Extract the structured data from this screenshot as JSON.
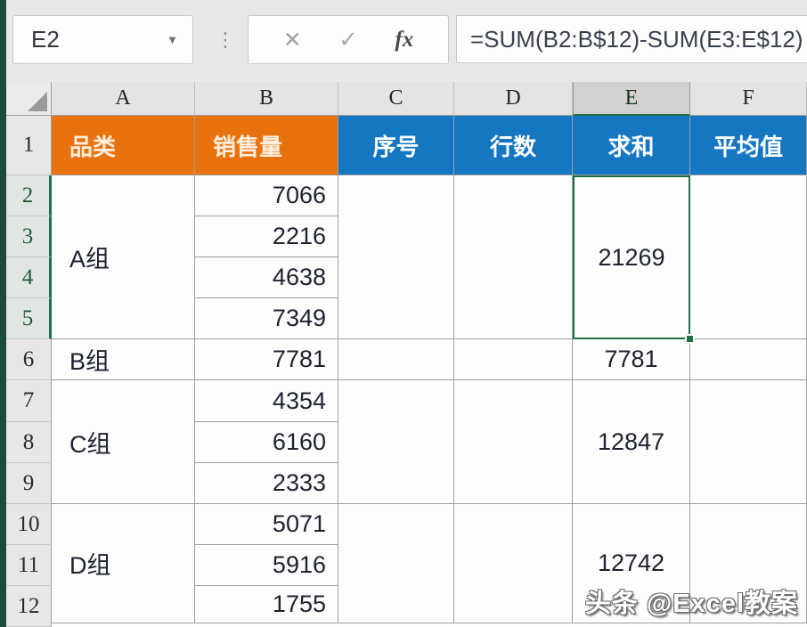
{
  "colors": {
    "orange": "#e8720e",
    "blue": "#1577c2",
    "selection_green": "#1e7145",
    "grid_border": "#9e9e9e",
    "topbar_bg": "#e8e8e8",
    "window_edge": "#1c4a3f"
  },
  "toolbar": {
    "name_box": "E2",
    "dropdown_icon": "▼",
    "separator_icon": "⋮",
    "cancel_icon": "✕",
    "confirm_icon": "✓",
    "fx_icon": "fx",
    "formula": "=SUM(B2:B$12)-SUM(E3:E$12)"
  },
  "grid": {
    "columns": [
      "A",
      "B",
      "C",
      "D",
      "E",
      "F"
    ],
    "rows": [
      "1",
      "2",
      "3",
      "4",
      "5",
      "6",
      "7",
      "8",
      "9",
      "10",
      "11",
      "12"
    ],
    "selected_cell": "E2",
    "selected_column": "E",
    "selected_rows": "2-5"
  },
  "cells": {
    "A1": "品类",
    "B1": "销售量",
    "C1": "序号",
    "D1": "行数",
    "E1": "求和",
    "F1": "平均值",
    "A2": "A组",
    "A6": "B组",
    "A7": "C组",
    "A10": "D组",
    "B2": "7066",
    "B3": "2216",
    "B4": "4638",
    "B5": "7349",
    "B6": "7781",
    "B7": "4354",
    "B8": "6160",
    "B9": "2333",
    "B10": "5071",
    "B11": "5916",
    "B12": "1755",
    "E2": "21269",
    "E6": "7781",
    "E7": "12847",
    "E10": "12742"
  },
  "watermark": {
    "text": "头条 @Excel教案"
  }
}
